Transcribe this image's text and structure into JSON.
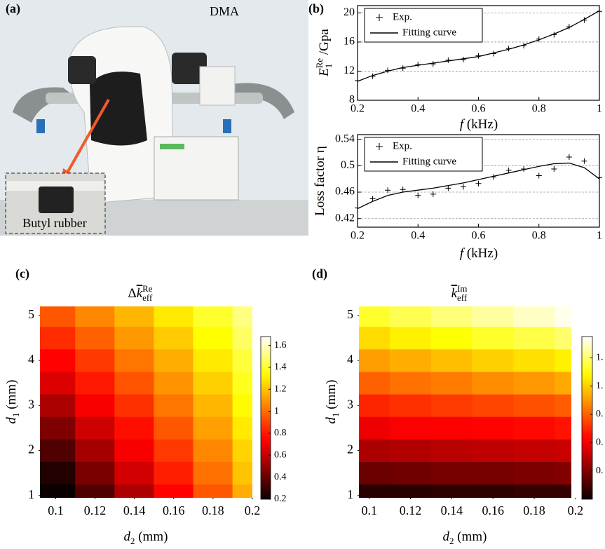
{
  "photo": {
    "label": "(a)",
    "title": "DMA",
    "sample_label": "Butyl rubber"
  },
  "chart_data": [
    {
      "type": "line",
      "panel_label": "(b)",
      "x": [
        0.2,
        0.25,
        0.3,
        0.35,
        0.4,
        0.45,
        0.5,
        0.55,
        0.6,
        0.65,
        0.7,
        0.75,
        0.8,
        0.85,
        0.9,
        0.95,
        1
      ],
      "xlim": [
        0.2,
        1
      ],
      "xticks": [
        0.2,
        0.4,
        0.6,
        0.8,
        1
      ],
      "ylim": [
        8,
        21
      ],
      "yticks": [
        8,
        12,
        16,
        20
      ],
      "grid": true,
      "legend": "upper left",
      "xlabel": {
        "symbol": "f",
        "rest": " (kHz)"
      },
      "ylabel": {
        "symbol": "E",
        "sub": "1",
        "sup": "Re",
        "rest": " /Gpa"
      },
      "series": [
        {
          "name": "Exp.",
          "color": "#000000",
          "marker": "plus",
          "values": [
            10.7,
            11.3,
            12.1,
            12.4,
            12.9,
            13.0,
            13.5,
            13.6,
            14.1,
            14.4,
            15.1,
            15.5,
            16.4,
            17.0,
            18.1,
            19.0,
            20.2
          ]
        },
        {
          "name": "Fitting curve",
          "color": "#000000",
          "marker": "line",
          "values": [
            10.6,
            11.4,
            12.0,
            12.5,
            12.8,
            13.1,
            13.4,
            13.7,
            14.0,
            14.5,
            15.0,
            15.6,
            16.3,
            17.1,
            18.0,
            19.1,
            20.3
          ]
        }
      ]
    },
    {
      "type": "line",
      "x": [
        0.2,
        0.25,
        0.3,
        0.35,
        0.4,
        0.45,
        0.5,
        0.55,
        0.6,
        0.65,
        0.7,
        0.75,
        0.8,
        0.85,
        0.9,
        0.95,
        1
      ],
      "xlim": [
        0.2,
        1
      ],
      "xticks": [
        0.2,
        0.4,
        0.6,
        0.8,
        1
      ],
      "ylim": [
        0.407,
        0.547
      ],
      "yticks": [
        0.42,
        0.46,
        0.5,
        0.54
      ],
      "grid": true,
      "legend": "upper left",
      "xlabel": {
        "symbol": "f",
        "rest": " (kHz)"
      },
      "ylabel": {
        "text": "Loss factor η"
      },
      "series": [
        {
          "name": "Exp.",
          "color": "#000000",
          "marker": "plus",
          "values": [
            0.436,
            0.45,
            0.463,
            0.464,
            0.455,
            0.457,
            0.466,
            0.468,
            0.473,
            0.483,
            0.493,
            0.495,
            0.485,
            0.495,
            0.513,
            0.507,
            0.482
          ]
        },
        {
          "name": "Fitting curve",
          "color": "#000000",
          "marker": "line",
          "values": [
            0.435,
            0.446,
            0.455,
            0.46,
            0.463,
            0.466,
            0.47,
            0.474,
            0.479,
            0.484,
            0.489,
            0.494,
            0.499,
            0.503,
            0.504,
            0.497,
            0.48
          ]
        }
      ]
    },
    {
      "type": "heatmap",
      "panel_label": "(c)",
      "title": {
        "prefix": "Δ",
        "symbol": "k",
        "sub": "eff",
        "sup": "Re"
      },
      "xlabel": {
        "symbol": "d",
        "sub": "2",
        "rest": " (mm)"
      },
      "ylabel": {
        "symbol": "d",
        "sub": "1",
        "rest": " (mm)"
      },
      "x": [
        0.1,
        0.12,
        0.14,
        0.16,
        0.18,
        0.2
      ],
      "y": [
        1,
        1.5,
        2,
        2.5,
        3,
        3.5,
        4,
        4.5,
        5
      ],
      "xlim": [
        0.092,
        0.2
      ],
      "xticks": [
        0.1,
        0.12,
        0.14,
        0.16,
        0.18,
        0.2
      ],
      "ylim": [
        0.95,
        5.2
      ],
      "yticks": [
        1,
        2,
        3,
        4,
        5
      ],
      "colormap": "hot",
      "clim": [
        0.2,
        1.68
      ],
      "cticks": [
        0.2,
        0.4,
        0.6,
        0.8,
        1,
        1.2,
        1.4,
        1.6
      ],
      "values": [
        [
          0.15,
          0.35,
          0.55,
          0.75,
          0.95,
          1.15
        ],
        [
          0.25,
          0.44,
          0.63,
          0.82,
          1.01,
          1.2
        ],
        [
          0.35,
          0.53,
          0.71,
          0.88,
          1.06,
          1.24
        ],
        [
          0.45,
          0.62,
          0.78,
          0.95,
          1.12,
          1.29
        ],
        [
          0.55,
          0.71,
          0.86,
          1.02,
          1.17,
          1.33
        ],
        [
          0.65,
          0.8,
          0.94,
          1.09,
          1.23,
          1.38
        ],
        [
          0.75,
          0.88,
          1.02,
          1.15,
          1.29,
          1.42
        ],
        [
          0.85,
          0.97,
          1.1,
          1.22,
          1.34,
          1.47
        ],
        [
          0.95,
          1.06,
          1.17,
          1.29,
          1.4,
          1.51
        ]
      ]
    },
    {
      "type": "heatmap",
      "panel_label": "(d)",
      "title": {
        "symbol": "k",
        "sub": "eff",
        "sup": "Im"
      },
      "xlabel": {
        "symbol": "d",
        "sub": "2",
        "rest": " (mm)"
      },
      "ylabel": {
        "symbol": "d",
        "sub": "1",
        "rest": " (mm)"
      },
      "x": [
        0.1,
        0.12,
        0.14,
        0.16,
        0.18,
        0.2
      ],
      "y": [
        1,
        1.5,
        2,
        2.5,
        3,
        3.5,
        4,
        4.5,
        5
      ],
      "xlim": [
        0.095,
        0.198
      ],
      "xticks": [
        0.1,
        0.12,
        0.14,
        0.16,
        0.18,
        0.2
      ],
      "ylim": [
        0.95,
        5.2
      ],
      "yticks": [
        1,
        2,
        3,
        4,
        5
      ],
      "colormap": "hot",
      "clim": [
        0.2,
        1.35
      ],
      "cticks": [
        {
          "value": 1.2,
          "label": "1."
        },
        {
          "value": 1.0,
          "label": "1."
        },
        {
          "value": 0.8,
          "label": "0."
        },
        {
          "value": 0.6,
          "label": "0."
        },
        {
          "value": 0.4,
          "label": "0."
        }
      ],
      "values": [
        [
          0.25,
          0.25,
          0.26,
          0.26,
          0.27,
          0.27
        ],
        [
          0.36,
          0.37,
          0.38,
          0.38,
          0.39,
          0.4
        ],
        [
          0.47,
          0.48,
          0.49,
          0.5,
          0.51,
          0.52
        ],
        [
          0.58,
          0.6,
          0.61,
          0.63,
          0.64,
          0.66
        ],
        [
          0.69,
          0.71,
          0.73,
          0.75,
          0.77,
          0.79
        ],
        [
          0.8,
          0.83,
          0.85,
          0.88,
          0.9,
          0.93
        ],
        [
          0.91,
          0.94,
          0.97,
          1.0,
          1.03,
          1.06
        ],
        [
          1.02,
          1.06,
          1.09,
          1.13,
          1.16,
          1.2
        ],
        [
          1.13,
          1.17,
          1.21,
          1.25,
          1.29,
          1.33
        ]
      ]
    }
  ]
}
